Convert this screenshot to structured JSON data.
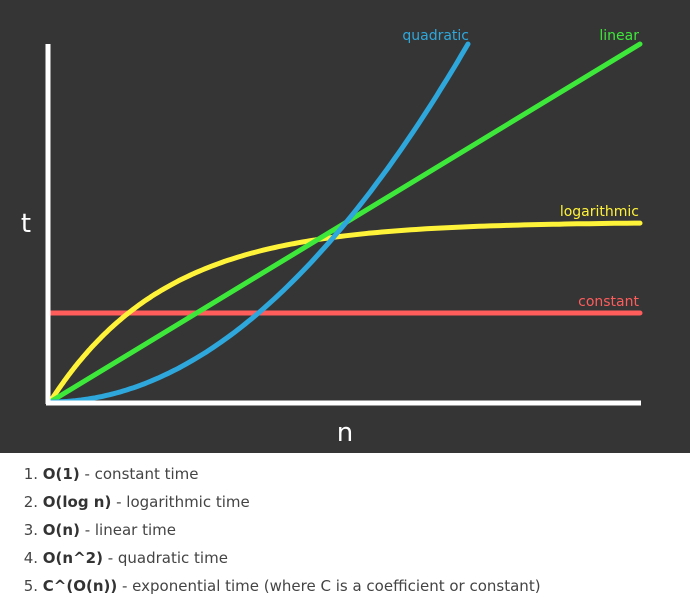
{
  "chart_data": {
    "type": "line",
    "xlabel": "n",
    "ylabel": "t",
    "grid": false,
    "colors": {
      "background": "#353535",
      "axes": "#ffffff",
      "constant": "#ff5c5c",
      "logarithmic": "#fff33a",
      "linear": "#3de83a",
      "quadratic": "#2ea8dc"
    },
    "series": [
      {
        "name": "constant",
        "shape": "constant"
      },
      {
        "name": "logarithmic",
        "shape": "logarithmic"
      },
      {
        "name": "linear",
        "shape": "linear"
      },
      {
        "name": "quadratic",
        "shape": "quadratic"
      }
    ]
  },
  "list": {
    "items": [
      {
        "number": "1.",
        "term": "O(1)",
        "description": " - constant time"
      },
      {
        "number": "2.",
        "term": "O(log n)",
        "description": " - logarithmic time"
      },
      {
        "number": "3.",
        "term": "O(n)",
        "description": " - linear time"
      },
      {
        "number": "4.",
        "term": "O(n^2)",
        "description": " - quadratic time"
      },
      {
        "number": "5.",
        "term": "C^(O(n))",
        "description": " - exponential time (where C is a coefficient or constant)"
      }
    ]
  }
}
